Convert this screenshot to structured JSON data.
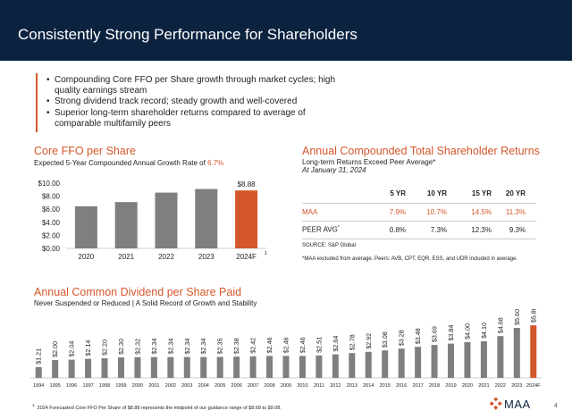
{
  "header": {
    "title": "Consistently Strong Performance for Shareholders"
  },
  "intro": {
    "bullets": [
      "Compounding Core FFO per Share growth through market cycles; high quality earnings stream",
      "Strong dividend track record; steady growth and well-covered",
      "Superior long-term shareholder returns compared to average of comparable multifamily peers"
    ]
  },
  "ffo": {
    "title": "Core FFO per Share",
    "subtitle_prefix": "Expected 5-Year Compounded Annual Growth Rate of ",
    "rate": "6.7%"
  },
  "tsr": {
    "title": "Annual Compounded Total Shareholder Returns",
    "subtitle": "Long-term Returns Exceed Peer Average*",
    "date": "At January 31, 2024",
    "headers": [
      "",
      "5 YR",
      "10 YR",
      "15 YR",
      "20 YR"
    ],
    "rows": [
      {
        "label": "MAA",
        "values": [
          "7.9%",
          "10.7%",
          "14.5%",
          "11.3%"
        ]
      },
      {
        "label": "PEER AVG",
        "sup": "*",
        "values": [
          "0.8%",
          "7.3%",
          "12.3%",
          "9.3%"
        ]
      }
    ],
    "source": "SOURCE:  S&P Global",
    "excluded": "*MAA excluded from average.  Peers: AVB, CPT, EQR, ESS, and UDR included in average."
  },
  "dividend": {
    "title": "Annual Common Dividend per Share Paid",
    "subtitle": "Never Suspended or Reduced | A Solid Record of Growth and Stability"
  },
  "chart_data": [
    {
      "type": "bar",
      "title": "Core FFO per Share",
      "categories": [
        "2020",
        "2021",
        "2022",
        "2023",
        "2024F"
      ],
      "values": [
        6.45,
        7.1,
        8.55,
        9.1,
        8.88
      ],
      "highlight_index": 4,
      "data_labels": [
        "",
        "",
        "",
        "",
        "$8.88"
      ],
      "category_footnote": "1",
      "yticks": [
        "$0.00",
        "$2.00",
        "$4.00",
        "$6.00",
        "$8.00",
        "$10.00"
      ],
      "ylim": [
        0,
        10
      ],
      "colors": {
        "bar": "#7f7f7f",
        "highlight": "#d4572b"
      }
    },
    {
      "type": "bar",
      "title": "Annual Common Dividend per Share Paid",
      "categories": [
        "1994",
        "1995",
        "1996",
        "1997",
        "1998",
        "1999",
        "2000",
        "2001",
        "2002",
        "2003",
        "2004",
        "2005",
        "2006",
        "2007",
        "2008",
        "2009",
        "2010",
        "2011",
        "2012",
        "2013",
        "2014",
        "2015",
        "2016",
        "2017",
        "2018",
        "2019",
        "2020",
        "2021",
        "2022",
        "2023",
        "2024F"
      ],
      "values": [
        1.21,
        2.0,
        2.04,
        2.14,
        2.2,
        2.3,
        2.32,
        2.34,
        2.34,
        2.34,
        2.34,
        2.35,
        2.38,
        2.42,
        2.46,
        2.46,
        2.46,
        2.51,
        2.64,
        2.78,
        2.92,
        3.08,
        3.28,
        3.48,
        3.69,
        3.84,
        4.0,
        4.1,
        4.68,
        5.6,
        5.88
      ],
      "labels": [
        "$1.21",
        "$2.00",
        "$2.04",
        "$2.14",
        "$2.20",
        "$2.30",
        "$2.32",
        "$2.34",
        "$2.34",
        "$2.34",
        "$2.34",
        "$2.35",
        "$2.38",
        "$2.42",
        "$2.46",
        "$2.46",
        "$2.46",
        "$2.51",
        "$2.64",
        "$2.78",
        "$2.92",
        "$3.08",
        "$3.28",
        "$3.48",
        "$3.69",
        "$3.84",
        "$4.00",
        "$4.10",
        "$4.68",
        "$5.60",
        "$5.88"
      ],
      "highlight_index": 30,
      "ylim": [
        0,
        6
      ],
      "colors": {
        "bar": "#7f7f7f",
        "highlight": "#d4572b"
      }
    }
  ],
  "footnote": {
    "mark": "1",
    "text": "2024 Forecasted Core FFO Per Share of $8.88 represents the midpoint of our guidance range of $8.68 to $9.08."
  },
  "logo": {
    "text": "MAA"
  },
  "page_number": "4",
  "colors": {
    "navy": "#0c2340",
    "accent": "#d4572b",
    "bar_gray": "#7f7f7f"
  }
}
